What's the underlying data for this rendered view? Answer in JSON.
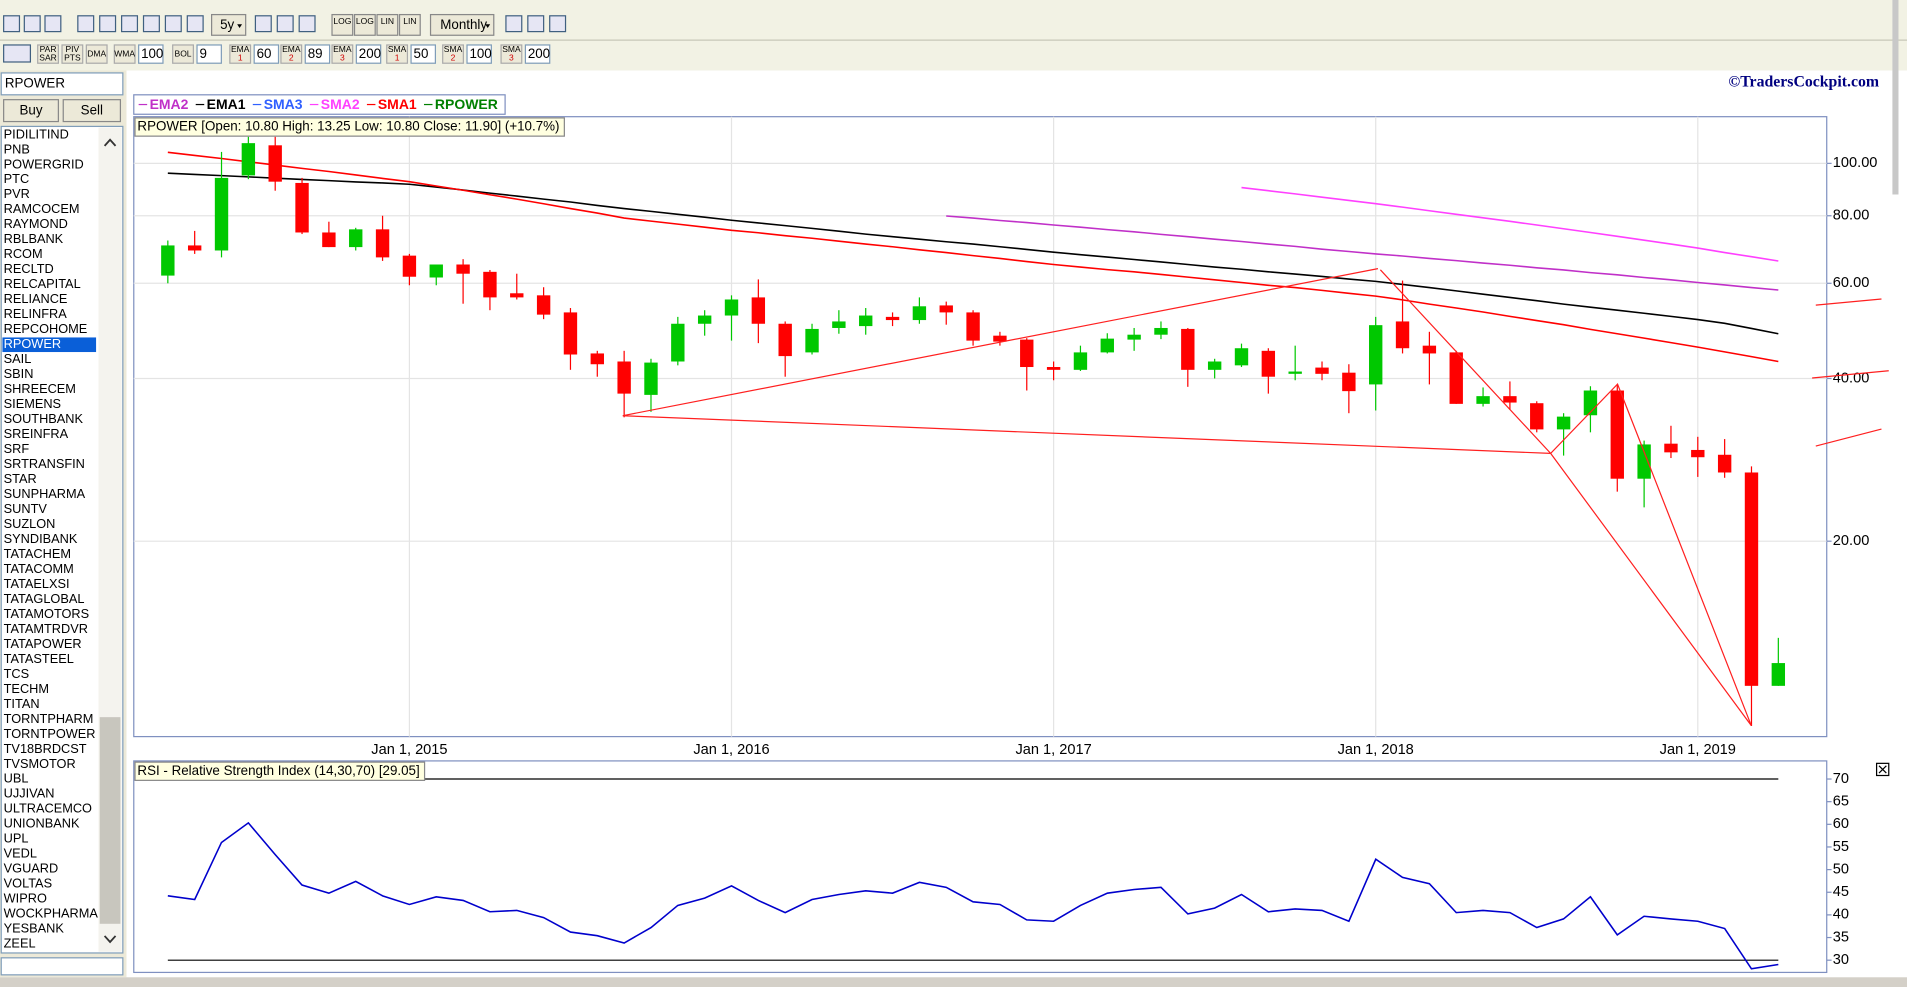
{
  "toolbar": {
    "period": "5y",
    "interval": "Monthly",
    "scale_buttons": [
      "LOG",
      "LOG",
      "LIN",
      "LIN"
    ]
  },
  "indicator_bar": {
    "buttons": [
      "PAR SAR",
      "PIV PTS",
      "DMA"
    ],
    "inputs": [
      {
        "label": "WMA",
        "value": 100
      },
      {
        "label": "BOL",
        "value": 9
      },
      {
        "label": "EMA 1",
        "value": 60
      },
      {
        "label": "EMA 2",
        "value": 89
      },
      {
        "label": "EMA 3",
        "value": 200
      },
      {
        "label": "SMA 1",
        "value": 50
      },
      {
        "label": "SMA 2",
        "value": 100
      },
      {
        "label": "SMA 3",
        "value": 200
      }
    ]
  },
  "symbol_input": "RPOWER",
  "buttons": [
    "Buy",
    "Sell"
  ],
  "symbols": [
    "PIDILITIND",
    "PNB",
    "POWERGRID",
    "PTC",
    "PVR",
    "RAMCOCEM",
    "RAYMOND",
    "RBLBANK",
    "RCOM",
    "RECLTD",
    "RELCAPITAL",
    "RELIANCE",
    "RELINFRA",
    "REPCOHOME",
    "RPOWER",
    "SAIL",
    "SBIN",
    "SHREECEM",
    "SIEMENS",
    "SOUTHBANK",
    "SREINFRA",
    "SRF",
    "SRTRANSFIN",
    "STAR",
    "SUNPHARMA",
    "SUNTV",
    "SUZLON",
    "SYNDIBANK",
    "TATACHEM",
    "TATACOMM",
    "TATAELXSI",
    "TATAGLOBAL",
    "TATAMOTORS",
    "TATAMTRDVR",
    "TATAPOWER",
    "TATASTEEL",
    "TCS",
    "TECHM",
    "TITAN",
    "TORNTPHARM",
    "TORNTPOWER",
    "TV18BRDCST",
    "TVSMOTOR",
    "UBL",
    "UJJIVAN",
    "ULTRACEMCO",
    "UNIONBANK",
    "UPL",
    "VEDL",
    "VGUARD",
    "VOLTAS",
    "WIPRO",
    "WOCKPHARMA",
    "YESBANK",
    "ZEEL"
  ],
  "watermark": "©TradersCockpit.com",
  "chart_data": [
    {
      "type": "candlestick",
      "title": "RPOWER [Open: 10.80  High: 13.25  Low: 10.80  Close: 11.90] (+10.7%)",
      "name": "RPOWER",
      "color": "#008000",
      "up_color": "#00c800",
      "down_color": "#ff0000",
      "x": [
        "2014-04",
        "2014-05",
        "2014-06",
        "2014-07",
        "2014-08",
        "2014-09",
        "2014-10",
        "2014-11",
        "2014-12",
        "2015-01",
        "2015-02",
        "2015-03",
        "2015-04",
        "2015-05",
        "2015-06",
        "2015-07",
        "2015-08",
        "2015-09",
        "2015-10",
        "2015-11",
        "2015-12",
        "2016-01",
        "2016-02",
        "2016-03",
        "2016-04",
        "2016-05",
        "2016-06",
        "2016-07",
        "2016-08",
        "2016-09",
        "2016-10",
        "2016-11",
        "2016-12",
        "2017-01",
        "2017-02",
        "2017-03",
        "2017-04",
        "2017-05",
        "2017-06",
        "2017-07",
        "2017-08",
        "2017-09",
        "2017-10",
        "2017-11",
        "2017-12",
        "2018-01",
        "2018-02",
        "2018-03",
        "2018-04",
        "2018-05",
        "2018-06",
        "2018-07",
        "2018-08",
        "2018-09",
        "2018-10",
        "2018-11",
        "2018-12",
        "2019-01",
        "2019-02",
        "2019-03",
        "2019-04"
      ],
      "open": [
        62,
        70.5,
        69,
        95,
        108,
        92,
        74.5,
        70,
        75.5,
        67.5,
        61.5,
        65,
        63,
        57.5,
        57,
        53,
        44.5,
        43,
        37.3,
        43,
        50.5,
        52.3,
        56.5,
        50.5,
        44.7,
        49.6,
        50,
        52,
        51.3,
        54.6,
        53,
        48,
        47.2,
        42,
        41.5,
        44.7,
        47.2,
        48.2,
        49.4,
        41.5,
        42.3,
        45,
        40.8,
        41.9,
        41,
        39,
        51,
        46,
        44.7,
        35.9,
        37.1,
        36,
        32.2,
        34.2,
        38,
        26.1,
        30.3,
        29.5,
        28.9,
        26.8,
        10.8
      ],
      "high": [
        72,
        75,
        105,
        112,
        112,
        94,
        78,
        76,
        80,
        68,
        65,
        66.5,
        63.5,
        62.5,
        59,
        54,
        45,
        45,
        43.5,
        52,
        53.5,
        57,
        61,
        51,
        50.5,
        53.5,
        54,
        53,
        56.5,
        55.5,
        53.5,
        48.8,
        47.5,
        43,
        46,
        48.5,
        49.6,
        51,
        49.6,
        43.5,
        46.4,
        45.5,
        46,
        43,
        42.5,
        52,
        60.7,
        48.8,
        45,
        38.5,
        39.5,
        36.3,
        34.5,
        38.7,
        38.9,
        30.7,
        32.7,
        31.2,
        30.9,
        27.5,
        13.25
      ],
      "low": [
        60,
        68,
        67,
        93.5,
        89,
        74,
        70,
        69,
        66,
        59.5,
        59.5,
        55,
        53.5,
        56,
        51.5,
        41.5,
        40.3,
        33.9,
        34.7,
        42.3,
        48,
        47,
        46.5,
        40.3,
        44.3,
        48.4,
        48.2,
        50,
        50.5,
        50.3,
        46,
        46,
        38,
        39.7,
        41.3,
        44.5,
        45,
        47.3,
        38.6,
        40,
        42,
        37.5,
        39.7,
        39.7,
        34.5,
        34.9,
        44.5,
        39,
        35.9,
        35.5,
        35,
        31.8,
        28.8,
        31.8,
        24.7,
        23.1,
        28.5,
        26.3,
        26.2,
        9.1,
        10.8
      ],
      "close": [
        70.5,
        69,
        94,
        109,
        92.5,
        74.5,
        70,
        75.5,
        67,
        61.7,
        65,
        62.5,
        56.5,
        56.5,
        52.5,
        44.3,
        42.5,
        37.5,
        42.8,
        50.5,
        52.3,
        56,
        50.5,
        44,
        49.4,
        51,
        52.3,
        51.3,
        54.4,
        53,
        47,
        46.8,
        42,
        41.5,
        44.7,
        47.4,
        48.2,
        49.6,
        41.5,
        43,
        45.5,
        40.3,
        41.2,
        40.8,
        37.9,
        50.2,
        45.5,
        44.5,
        35.9,
        37.1,
        36.1,
        32.2,
        34,
        38,
        26.1,
        30.2,
        29.2,
        28.6,
        26.8,
        10.8,
        11.9
      ],
      "series": [
        {
          "name": "EMA2",
          "color": "#c030c8",
          "values": [
            null,
            null,
            null,
            null,
            null,
            null,
            null,
            null,
            null,
            null,
            null,
            null,
            null,
            null,
            null,
            null,
            null,
            null,
            null,
            null,
            null,
            null,
            null,
            null,
            null,
            null,
            null,
            null,
            null,
            79.9,
            79.2,
            78.4,
            77.7,
            76.9,
            76.2,
            75.4,
            74.7,
            73.9,
            73.2,
            72.4,
            71.7,
            70.9,
            70.2,
            69.4,
            68.7,
            68,
            67.4,
            66.7,
            66.1,
            65.4,
            64.8,
            64.1,
            63.5,
            62.8,
            62.2,
            61.5,
            60.9,
            60.2,
            59.6,
            58.9,
            58.3
          ]
        },
        {
          "name": "EMA1",
          "color": "#000000",
          "values": [
            95.9,
            95.4,
            94.9,
            94.4,
            93.9,
            93.4,
            92.9,
            92.4,
            92,
            91.5,
            90.4,
            89.3,
            88.1,
            87,
            85.9,
            84.8,
            83.6,
            82.5,
            81.5,
            80.5,
            79.5,
            78.5,
            77.6,
            76.7,
            75.8,
            74.9,
            74,
            73.2,
            72.4,
            71.6,
            70.9,
            70.1,
            69.3,
            68.5,
            67.8,
            67.1,
            66.4,
            65.7,
            65,
            64.3,
            63.7,
            63,
            62.4,
            61.8,
            61.1,
            60.5,
            59.7,
            58.9,
            58.1,
            57.3,
            56.5,
            55.7,
            54.9,
            54.2,
            53.5,
            52.8,
            52.1,
            51.4,
            50.6,
            49.5,
            48.4
          ]
        },
        {
          "name": "SMA3",
          "color": "#3060ff",
          "values": [
            null,
            null,
            null,
            null,
            null,
            null,
            null,
            null,
            null,
            null,
            null,
            null,
            null,
            null,
            null,
            null,
            null,
            null,
            null,
            null,
            null,
            null,
            null,
            null,
            null,
            null,
            null,
            null,
            null,
            null,
            null,
            null,
            null,
            null,
            null,
            null,
            null,
            null,
            null,
            null,
            null,
            null,
            null,
            null,
            null,
            null,
            null,
            null,
            null,
            null,
            null,
            null,
            null,
            null,
            null,
            null,
            null,
            null,
            null,
            null,
            null
          ]
        },
        {
          "name": "SMA2",
          "color": "#ff40ff",
          "values": [
            null,
            null,
            null,
            null,
            null,
            null,
            null,
            null,
            null,
            null,
            null,
            null,
            null,
            null,
            null,
            null,
            null,
            null,
            null,
            null,
            null,
            null,
            null,
            null,
            null,
            null,
            null,
            null,
            null,
            null,
            null,
            null,
            null,
            null,
            null,
            null,
            null,
            null,
            null,
            null,
            90.2,
            89,
            87.8,
            86.6,
            85.4,
            84.2,
            83,
            81.7,
            80.5,
            79.3,
            78.1,
            76.9,
            75.7,
            74.5,
            73.3,
            72.1,
            70.9,
            69.7,
            68.4,
            67.2,
            66
          ]
        },
        {
          "name": "SMA1",
          "color": "#ff0000",
          "values": [
            104.8,
            103.4,
            102.1,
            100.7,
            99.3,
            97.9,
            96.6,
            95.2,
            93.8,
            92.5,
            90.8,
            89.2,
            87.5,
            85.9,
            84.2,
            82.5,
            80.9,
            79.2,
            78.2,
            77.2,
            76.2,
            75.2,
            74.4,
            73.5,
            72.7,
            71.8,
            70.9,
            70.1,
            69.2,
            68.4,
            67.5,
            66.7,
            65.8,
            65,
            64.3,
            63.6,
            63,
            62.3,
            61.6,
            60.9,
            60.2,
            59.5,
            58.9,
            58.2,
            57.5,
            56.8,
            55.9,
            54.9,
            54,
            53.1,
            52.1,
            51.2,
            50.3,
            49.3,
            48.4,
            47.5,
            46.6,
            45.7,
            44.8,
            43.9,
            43
          ]
        }
      ],
      "log_scale": true,
      "ylim": [
        8.7,
        122
      ],
      "yticks": [
        {
          "value": 20,
          "label": "20.00"
        },
        {
          "value": 40,
          "label": "40.00"
        },
        {
          "value": 60,
          "label": "60.00"
        },
        {
          "value": 80,
          "label": "80.00"
        },
        {
          "value": 100,
          "label": "100.00"
        }
      ],
      "xticks": [
        {
          "value": "2015-01",
          "label": "Jan 1, 2015"
        },
        {
          "value": "2016-01",
          "label": "Jan 1, 2016"
        },
        {
          "value": "2017-01",
          "label": "Jan 1, 2017"
        },
        {
          "value": "2018-01",
          "label": "Jan 1, 2018"
        },
        {
          "value": "2019-01",
          "label": "Jan 1, 2019"
        }
      ],
      "grid": true
    },
    {
      "type": "line",
      "title": "RSI - Relative Strength Index (14,30,70) [29.05]",
      "x": [
        "2014-04",
        "2014-05",
        "2014-06",
        "2014-07",
        "2014-08",
        "2014-09",
        "2014-10",
        "2014-11",
        "2014-12",
        "2015-01",
        "2015-02",
        "2015-03",
        "2015-04",
        "2015-05",
        "2015-06",
        "2015-07",
        "2015-08",
        "2015-09",
        "2015-10",
        "2015-11",
        "2015-12",
        "2016-01",
        "2016-02",
        "2016-03",
        "2016-04",
        "2016-05",
        "2016-06",
        "2016-07",
        "2016-08",
        "2016-09",
        "2016-10",
        "2016-11",
        "2016-12",
        "2017-01",
        "2017-02",
        "2017-03",
        "2017-04",
        "2017-05",
        "2017-06",
        "2017-07",
        "2017-08",
        "2017-09",
        "2017-10",
        "2017-11",
        "2017-12",
        "2018-01",
        "2018-02",
        "2018-03",
        "2018-04",
        "2018-05",
        "2018-06",
        "2018-07",
        "2018-08",
        "2018-09",
        "2018-10",
        "2018-11",
        "2018-12",
        "2019-01",
        "2019-02",
        "2019-03",
        "2019-04"
      ],
      "series": [
        {
          "color": "#0000cc",
          "values": [
            44.2,
            43.4,
            56,
            60.3,
            53.3,
            46.6,
            44.8,
            47.4,
            44.2,
            42.3,
            44,
            43.2,
            40.7,
            41,
            39.4,
            36.2,
            35.4,
            33.8,
            37.2,
            42.1,
            43.7,
            46.4,
            43.2,
            40.5,
            43.4,
            44.5,
            45.3,
            44.8,
            47.2,
            46.1,
            42.9,
            42.3,
            38.9,
            38.6,
            42.1,
            44.8,
            45.6,
            46.1,
            40.2,
            41.5,
            44.5,
            40.7,
            41.3,
            41,
            38.6,
            52.3,
            48.3,
            46.9,
            40.5,
            41,
            40.5,
            37.2,
            39.1,
            44,
            35.6,
            39.7,
            39.1,
            38.6,
            37,
            28.1,
            29.05
          ]
        }
      ],
      "levels": [
        70,
        30
      ],
      "level_color": "#000000",
      "ylim": [
        27.3,
        74
      ],
      "yticks": [
        30,
        35,
        40,
        45,
        50,
        55,
        60,
        65,
        70
      ],
      "grid": false
    }
  ]
}
